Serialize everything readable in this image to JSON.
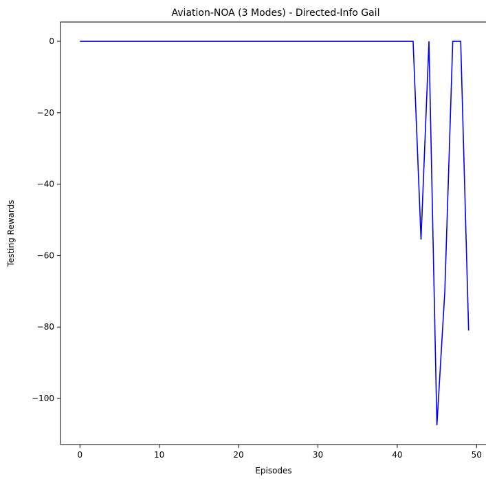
{
  "chart_data": {
    "type": "line",
    "title": "Aviation-NOA (3 Modes) - Directed-Info Gail",
    "xlabel": "Episodes",
    "ylabel": "Testing Rewards",
    "xlim": [
      -2.45,
      51.45
    ],
    "ylim": [
      -112.9,
      5.4
    ],
    "xticks": [
      0,
      10,
      20,
      30,
      40,
      50
    ],
    "yticks": [
      0,
      -20,
      -40,
      -60,
      -80,
      -100
    ],
    "xtick_labels": [
      "0",
      "10",
      "20",
      "30",
      "40",
      "50"
    ],
    "ytick_labels": [
      "0",
      "−20",
      "−40",
      "−60",
      "−80",
      "−100"
    ],
    "grid": false,
    "series": [
      {
        "color": "#0000ff",
        "x": [
          0,
          1,
          2,
          3,
          4,
          5,
          6,
          7,
          8,
          9,
          10,
          11,
          12,
          13,
          14,
          15,
          16,
          17,
          18,
          19,
          20,
          21,
          22,
          23,
          24,
          25,
          26,
          27,
          28,
          29,
          30,
          31,
          32,
          33,
          34,
          35,
          36,
          37,
          38,
          39,
          40,
          41,
          42,
          43,
          44,
          45,
          46,
          47,
          48,
          49
        ],
        "y": [
          0,
          0,
          0,
          0,
          0,
          0,
          0,
          0,
          0,
          0,
          0,
          0,
          0,
          0,
          0,
          0,
          0,
          0,
          0,
          0,
          0,
          0,
          0,
          0,
          0,
          0,
          0,
          0,
          0,
          0,
          0,
          0,
          0,
          0,
          0,
          0,
          0,
          0,
          0,
          0,
          0,
          0,
          0,
          -55.5,
          0,
          -107.5,
          -70,
          0,
          0,
          -81
        ]
      }
    ]
  }
}
